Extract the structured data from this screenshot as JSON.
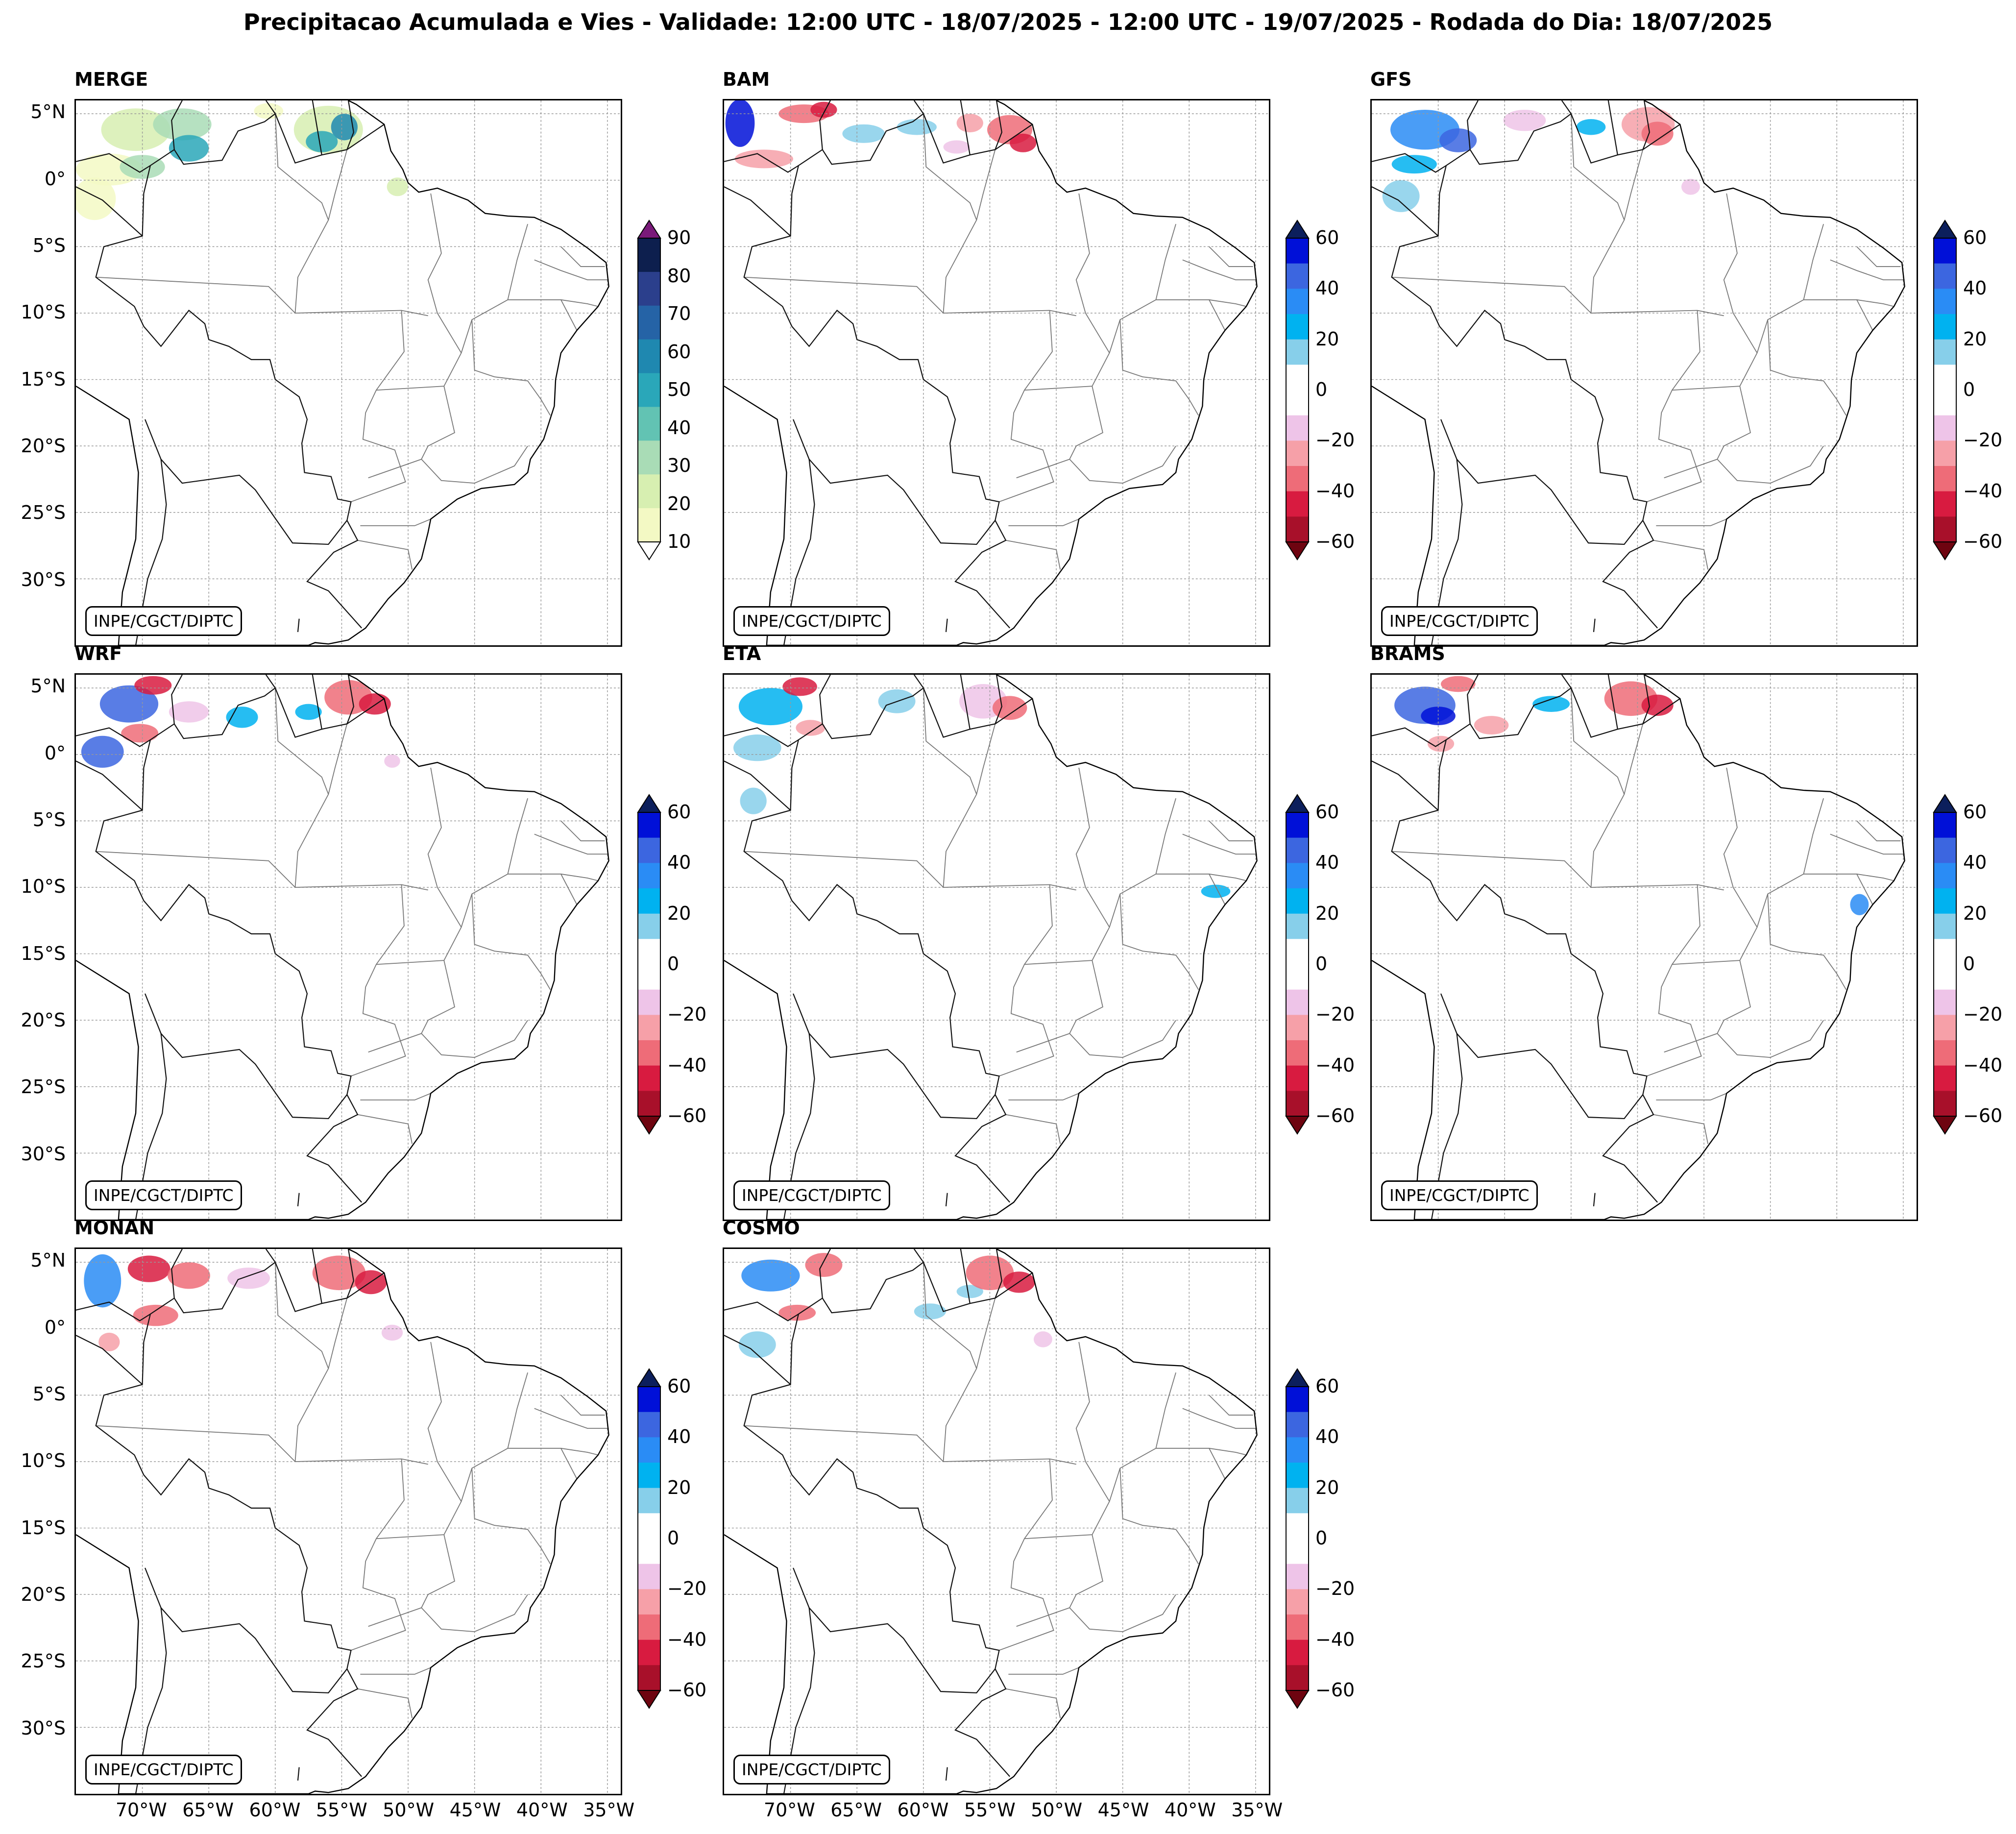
{
  "title": "Precipitacao Acumulada e Vies - Validade: 12:00 UTC - 18/07/2025 - 12:00 UTC - 19/07/2025 - Rodada do Dia: 18/07/2025",
  "credit": "INPE/CGCT/DIPTC",
  "lat_labels": [
    "5°N",
    "0°",
    "5°S",
    "10°S",
    "15°S",
    "20°S",
    "25°S",
    "30°S"
  ],
  "lon_labels": [
    "70°W",
    "65°W",
    "60°W",
    "55°W",
    "50°W",
    "45°W",
    "40°W",
    "35°W"
  ],
  "panels": [
    {
      "name": "MERGE",
      "cbar": "precip"
    },
    {
      "name": "BAM",
      "cbar": "bias"
    },
    {
      "name": "GFS",
      "cbar": "bias"
    },
    {
      "name": "WRF",
      "cbar": "bias"
    },
    {
      "name": "ETA",
      "cbar": "bias"
    },
    {
      "name": "BRAMS",
      "cbar": "bias"
    },
    {
      "name": "MONAN",
      "cbar": "bias"
    },
    {
      "name": "COSMO",
      "cbar": "bias"
    }
  ],
  "colorbars": {
    "precip": {
      "ticks": [
        "90",
        "80",
        "70",
        "60",
        "50",
        "40",
        "30",
        "20",
        "10"
      ],
      "colors": [
        "#0d1f4e",
        "#2b3f8c",
        "#2563a6",
        "#1f88b0",
        "#2aa7b9",
        "#62c3b3",
        "#a9dcb6",
        "#d7efb1",
        "#f3f9c4"
      ],
      "over": "#7a1a7a",
      "under": "#ffffff"
    },
    "bias": {
      "ticks": [
        "60",
        "40",
        "20",
        "0",
        "−20",
        "−40",
        "−60"
      ],
      "colors": [
        "#0010d8",
        "#3c66e0",
        "#2a8cf5",
        "#00b2f0",
        "#87cfea",
        "#ffffff",
        "#ffffff",
        "#eec4e8",
        "#f6a0a8",
        "#ee6c78",
        "#d81b40",
        "#a8102a"
      ],
      "over": "#0c1f5c",
      "under": "#6e0410"
    }
  }
}
